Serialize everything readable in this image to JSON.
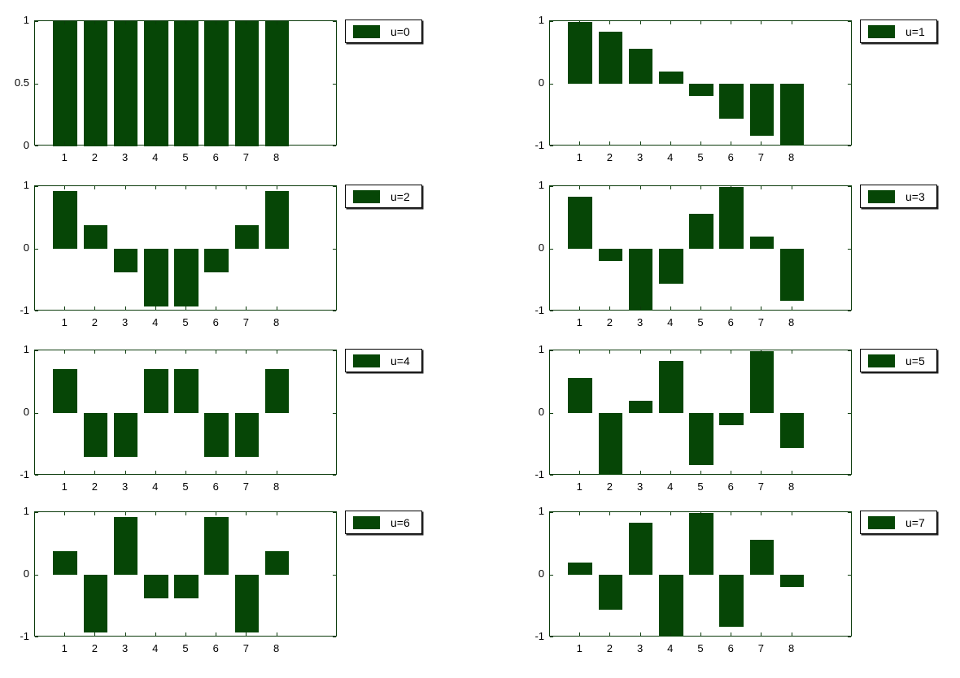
{
  "figure": {
    "background": "#ffffff",
    "bar_color": "#064606",
    "axis_color": "#0a3a0a",
    "text_color": "#000000",
    "legend_border_color": "#000000",
    "legend_background": "#ffffff"
  },
  "chart_data": [
    {
      "type": "bar",
      "legend": "u=0",
      "categories": [
        "1",
        "2",
        "3",
        "4",
        "5",
        "6",
        "7",
        "8"
      ],
      "x": [
        1,
        2,
        3,
        4,
        5,
        6,
        7,
        8
      ],
      "values": [
        1,
        1,
        1,
        1,
        1,
        1,
        1,
        1
      ],
      "title": "",
      "xlabel": "",
      "ylabel": "",
      "xlim": [
        0,
        10
      ],
      "ylim": [
        0,
        1
      ],
      "bar_width": 0.8,
      "yticks": [
        {
          "v": 1,
          "label": "1"
        },
        {
          "v": 0.5,
          "label": "0.5"
        },
        {
          "v": 0,
          "label": "0"
        }
      ],
      "grid": false,
      "legend_position": "right-of-plot-top"
    },
    {
      "type": "bar",
      "legend": "u=1",
      "categories": [
        "1",
        "2",
        "3",
        "4",
        "5",
        "6",
        "7",
        "8"
      ],
      "x": [
        1,
        2,
        3,
        4,
        5,
        6,
        7,
        8
      ],
      "values": [
        0.981,
        0.831,
        0.556,
        0.195,
        -0.195,
        -0.556,
        -0.831,
        -0.981
      ],
      "title": "",
      "xlabel": "",
      "ylabel": "",
      "xlim": [
        0,
        10
      ],
      "ylim": [
        -1,
        1
      ],
      "bar_width": 0.8,
      "yticks": [
        {
          "v": 1,
          "label": "1"
        },
        {
          "v": 0,
          "label": "0"
        },
        {
          "v": -1,
          "label": "-1"
        }
      ],
      "grid": false,
      "legend_position": "right-of-plot-top"
    },
    {
      "type": "bar",
      "legend": "u=2",
      "categories": [
        "1",
        "2",
        "3",
        "4",
        "5",
        "6",
        "7",
        "8"
      ],
      "x": [
        1,
        2,
        3,
        4,
        5,
        6,
        7,
        8
      ],
      "values": [
        0.924,
        0.383,
        -0.383,
        -0.924,
        -0.924,
        -0.383,
        0.383,
        0.924
      ],
      "title": "",
      "xlabel": "",
      "ylabel": "",
      "xlim": [
        0,
        10
      ],
      "ylim": [
        -1,
        1
      ],
      "bar_width": 0.8,
      "yticks": [
        {
          "v": 1,
          "label": "1"
        },
        {
          "v": 0,
          "label": "0"
        },
        {
          "v": -1,
          "label": "-1"
        }
      ],
      "grid": false,
      "legend_position": "right-of-plot-top"
    },
    {
      "type": "bar",
      "legend": "u=3",
      "categories": [
        "1",
        "2",
        "3",
        "4",
        "5",
        "6",
        "7",
        "8"
      ],
      "x": [
        1,
        2,
        3,
        4,
        5,
        6,
        7,
        8
      ],
      "values": [
        0.831,
        -0.195,
        -0.981,
        -0.556,
        0.556,
        0.981,
        0.195,
        -0.831
      ],
      "title": "",
      "xlabel": "",
      "ylabel": "",
      "xlim": [
        0,
        10
      ],
      "ylim": [
        -1,
        1
      ],
      "bar_width": 0.8,
      "yticks": [
        {
          "v": 1,
          "label": "1"
        },
        {
          "v": 0,
          "label": "0"
        },
        {
          "v": -1,
          "label": "-1"
        }
      ],
      "grid": false,
      "legend_position": "right-of-plot-top"
    },
    {
      "type": "bar",
      "legend": "u=4",
      "categories": [
        "1",
        "2",
        "3",
        "4",
        "5",
        "6",
        "7",
        "8"
      ],
      "x": [
        1,
        2,
        3,
        4,
        5,
        6,
        7,
        8
      ],
      "values": [
        0.707,
        -0.707,
        -0.707,
        0.707,
        0.707,
        -0.707,
        -0.707,
        0.707
      ],
      "title": "",
      "xlabel": "",
      "ylabel": "",
      "xlim": [
        0,
        10
      ],
      "ylim": [
        -1,
        1
      ],
      "bar_width": 0.8,
      "yticks": [
        {
          "v": 1,
          "label": "1"
        },
        {
          "v": 0,
          "label": "0"
        },
        {
          "v": -1,
          "label": "-1"
        }
      ],
      "grid": false,
      "legend_position": "right-of-plot-top"
    },
    {
      "type": "bar",
      "legend": "u=5",
      "categories": [
        "1",
        "2",
        "3",
        "4",
        "5",
        "6",
        "7",
        "8"
      ],
      "x": [
        1,
        2,
        3,
        4,
        5,
        6,
        7,
        8
      ],
      "values": [
        0.556,
        -0.981,
        0.195,
        0.831,
        -0.831,
        -0.195,
        0.981,
        -0.556
      ],
      "title": "",
      "xlabel": "",
      "ylabel": "",
      "xlim": [
        0,
        10
      ],
      "ylim": [
        -1,
        1
      ],
      "bar_width": 0.8,
      "yticks": [
        {
          "v": 1,
          "label": "1"
        },
        {
          "v": 0,
          "label": "0"
        },
        {
          "v": -1,
          "label": "-1"
        }
      ],
      "grid": false,
      "legend_position": "right-of-plot-top"
    },
    {
      "type": "bar",
      "legend": "u=6",
      "categories": [
        "1",
        "2",
        "3",
        "4",
        "5",
        "6",
        "7",
        "8"
      ],
      "x": [
        1,
        2,
        3,
        4,
        5,
        6,
        7,
        8
      ],
      "values": [
        0.383,
        -0.924,
        0.924,
        -0.383,
        -0.383,
        0.924,
        -0.924,
        0.383
      ],
      "title": "",
      "xlabel": "",
      "ylabel": "",
      "xlim": [
        0,
        10
      ],
      "ylim": [
        -1,
        1
      ],
      "bar_width": 0.8,
      "yticks": [
        {
          "v": 1,
          "label": "1"
        },
        {
          "v": 0,
          "label": "0"
        },
        {
          "v": -1,
          "label": "-1"
        }
      ],
      "grid": false,
      "legend_position": "right-of-plot-top"
    },
    {
      "type": "bar",
      "legend": "u=7",
      "categories": [
        "1",
        "2",
        "3",
        "4",
        "5",
        "6",
        "7",
        "8"
      ],
      "x": [
        1,
        2,
        3,
        4,
        5,
        6,
        7,
        8
      ],
      "values": [
        0.195,
        -0.556,
        0.831,
        -0.981,
        0.981,
        -0.831,
        0.556,
        -0.195
      ],
      "title": "",
      "xlabel": "",
      "ylabel": "",
      "xlim": [
        0,
        10
      ],
      "ylim": [
        -1,
        1
      ],
      "bar_width": 0.8,
      "yticks": [
        {
          "v": 1,
          "label": "1"
        },
        {
          "v": 0,
          "label": "0"
        },
        {
          "v": -1,
          "label": "-1"
        }
      ],
      "grid": false,
      "legend_position": "right-of-plot-top"
    }
  ]
}
